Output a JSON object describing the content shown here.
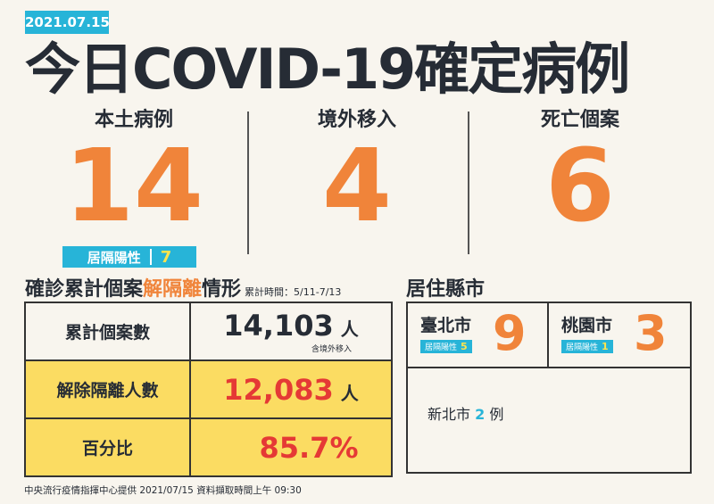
{
  "date": "2021.07.15",
  "title": "今日COVID-19確定病例",
  "stats": [
    {
      "label": "本土病例",
      "value": "14"
    },
    {
      "label": "境外移入",
      "value": "4"
    },
    {
      "label": "死亡個案",
      "value": "6"
    }
  ],
  "quarantine_badge": {
    "label": "居隔陽性",
    "value": "7"
  },
  "recovery": {
    "title_pre": "確診累計個案",
    "title_hl": "解隔離",
    "title_post": "情形",
    "period": "累計時間：5/11-7/13",
    "rows": [
      {
        "label": "累計個案數",
        "value": "14,103",
        "unit": "人",
        "note": "含境外移入"
      },
      {
        "label": "解除隔離人數",
        "value": "12,083",
        "unit": "人"
      },
      {
        "label": "百分比",
        "value": "85.7%"
      }
    ]
  },
  "residence": {
    "title": "居住縣市",
    "cities": [
      {
        "name": "臺北市",
        "q_label": "居隔陽性",
        "q_value": "5",
        "value": "9"
      },
      {
        "name": "桃園市",
        "q_label": "居隔陽性",
        "q_value": "1",
        "value": "3"
      }
    ],
    "other": {
      "pre": "新北市",
      "value": "2",
      "post": "例"
    }
  },
  "footer": "中央流行疫情指揮中心提供 2021/07/15 資料擷取時間上午 09:30",
  "colors": {
    "accent_orange": "#f0843a",
    "accent_blue": "#27b4d8",
    "highlight_yellow": "#fbdc62",
    "red": "#e53935"
  }
}
